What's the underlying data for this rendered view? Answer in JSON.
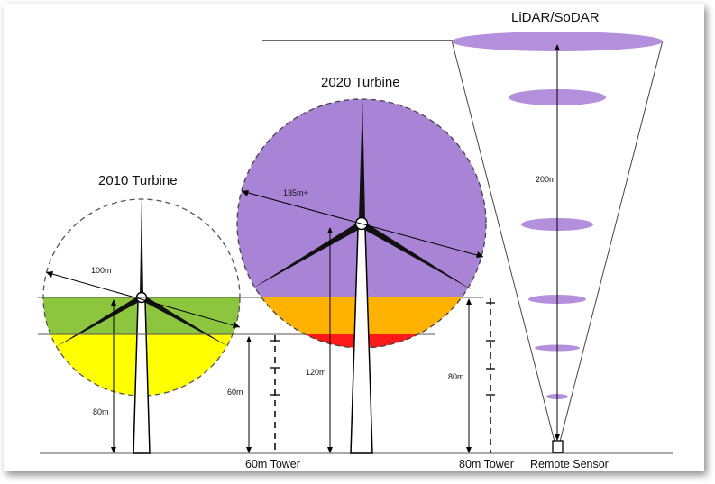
{
  "turbine_2010": {
    "title": "2010 Turbine",
    "rotor_label": "100m",
    "hub_height_label": "80m"
  },
  "turbine_2020": {
    "title": "2020 Turbine",
    "rotor_label": "135m+",
    "hub_height_label": "120m"
  },
  "tower_60m": {
    "height_label": "60m",
    "caption": "60m Tower"
  },
  "tower_80m": {
    "height_label": "80m",
    "caption": "80m Tower"
  },
  "remote_sensor": {
    "title": "LiDAR/SoDAR",
    "range_label": "200m",
    "caption": "Remote Sensor"
  },
  "colors": {
    "zone_green": "#8cc63f",
    "zone_yellow": "#ffff00",
    "rotor_purple": "#a983d6",
    "zone_orange": "#ffb300",
    "zone_red": "#ff1a1a",
    "cone_disc": "#b48fdc"
  }
}
